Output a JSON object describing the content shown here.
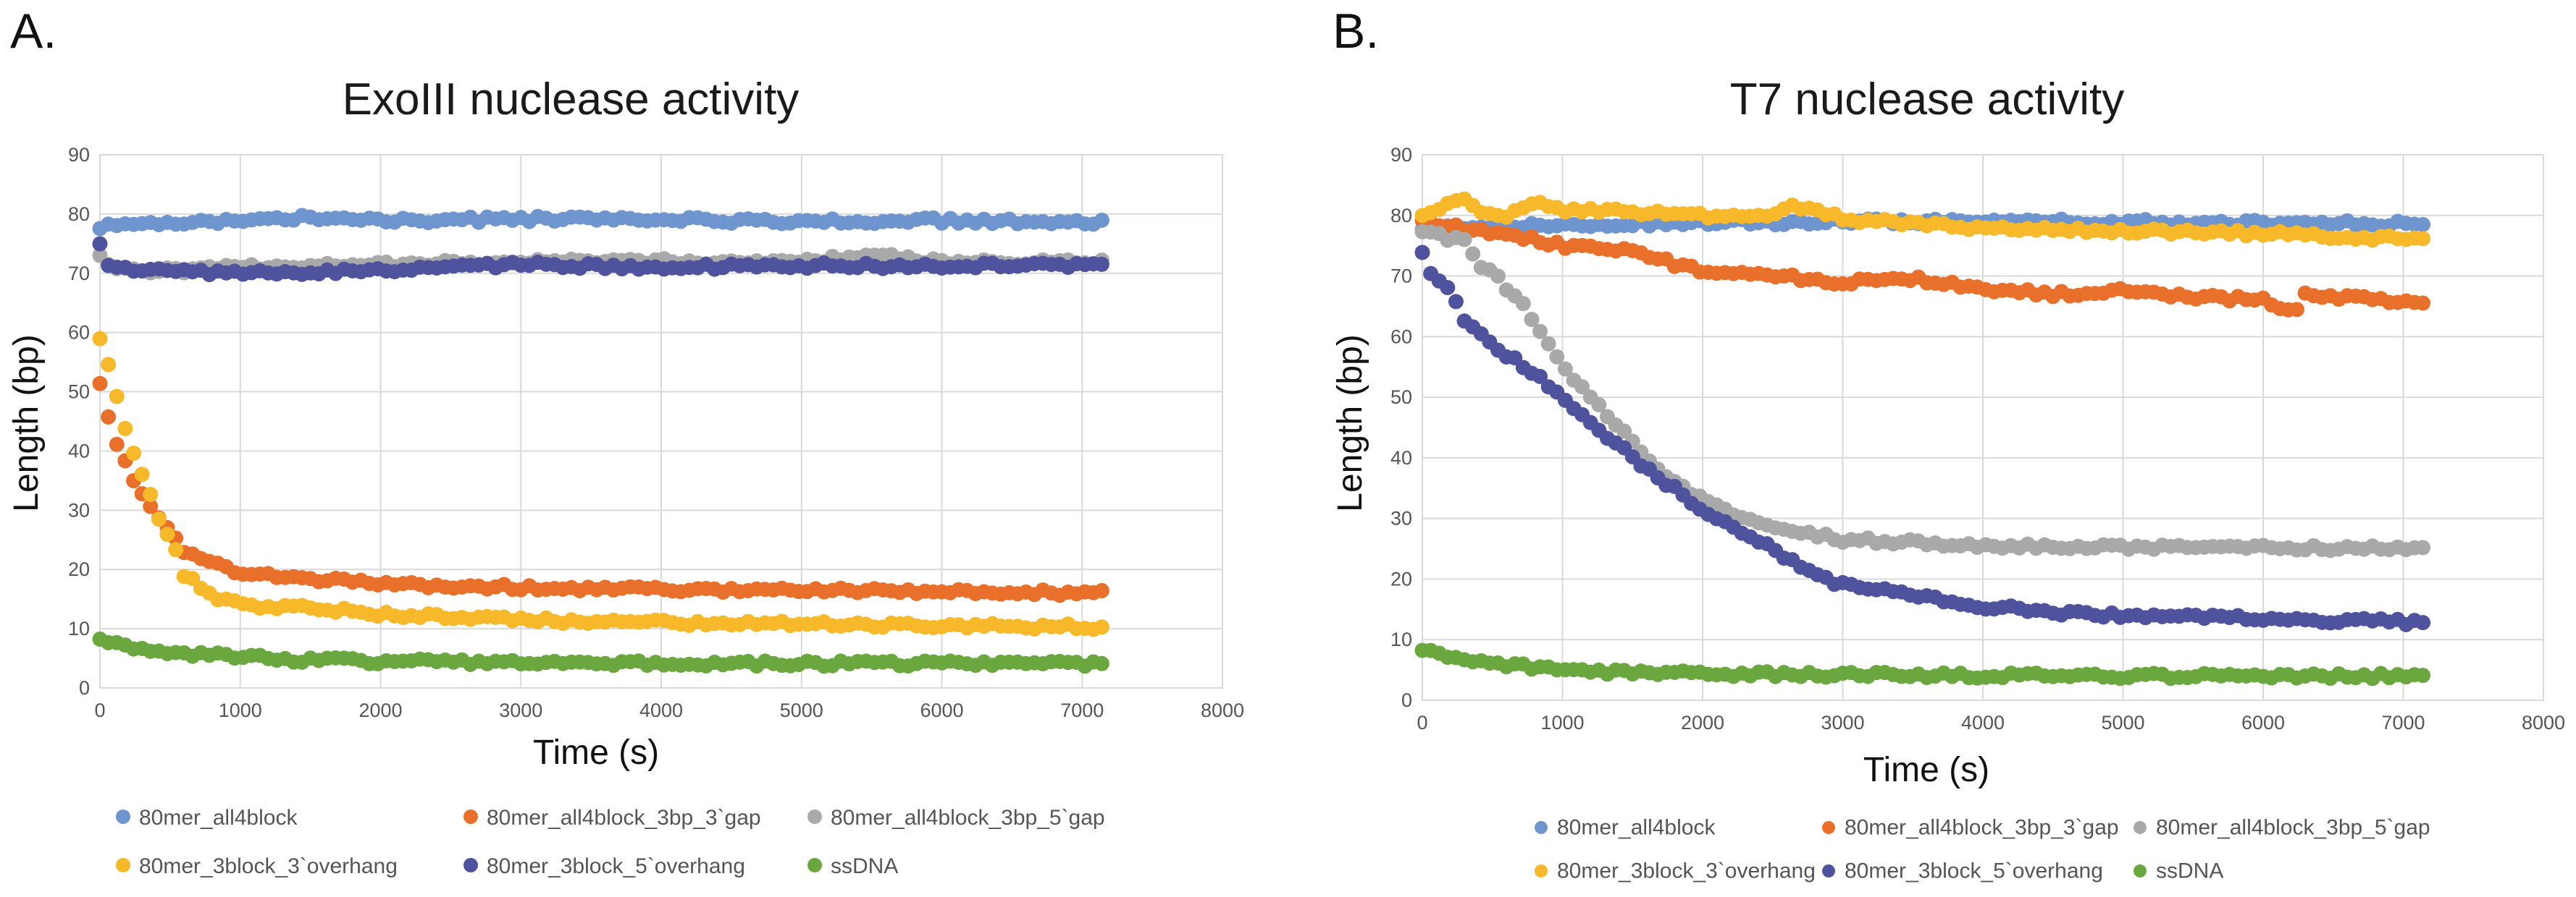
{
  "panel_letters": [
    "A.",
    "B."
  ],
  "colors": {
    "80mer_all4block": "#6f95cf",
    "80mer_all4block_3bp_3`gap": "#e8702a",
    "80mer_all4block_3bp_5`gap": "#a9a9a9",
    "80mer_3block_3`overhang": "#f7b82a",
    "80mer_3block_5`overhang": "#4f539d",
    "ssDNA": "#6aa83f"
  },
  "chart_data": [
    {
      "type": "scatter",
      "title": "ExoIII nuclease activity",
      "xlabel": "Time (s)",
      "ylabel": "Length (bp)",
      "xlim": [
        0,
        8000
      ],
      "ylim": [
        0,
        90
      ],
      "xticks": [
        0,
        1000,
        2000,
        3000,
        4000,
        5000,
        6000,
        7000,
        8000
      ],
      "yticks": [
        0,
        10,
        20,
        30,
        40,
        50,
        60,
        70,
        80,
        90
      ],
      "grid": true,
      "legend_position": "bottom",
      "series": [
        {
          "name": "80mer_all4block",
          "x": [
            0,
            600,
            1200,
            1500,
            1800,
            2500,
            3300,
            4000,
            5000,
            6000,
            7150
          ],
          "y": [
            78,
            78.5,
            79,
            79.4,
            79,
            79,
            79.2,
            79,
            78.8,
            78.9,
            78.7
          ]
        },
        {
          "name": "80mer_all4block_3bp_3`gap",
          "x": [
            0,
            100,
            200,
            300,
            400,
            500,
            600,
            800,
            1000,
            1500,
            2000,
            3000,
            4000,
            5000,
            6000,
            7150
          ],
          "y": [
            51,
            42.5,
            37,
            32.5,
            29,
            26.5,
            23,
            21,
            19.5,
            18.5,
            17.5,
            17,
            16.7,
            16.5,
            16.3,
            16
          ]
        },
        {
          "name": "80mer_all4block_3bp_5`gap",
          "x": [
            0,
            100,
            300,
            600,
            1000,
            2000,
            3000,
            4000,
            5000,
            5500,
            6000,
            7150
          ],
          "y": [
            73,
            71,
            70.5,
            70.5,
            71,
            71.5,
            72,
            72,
            72,
            73,
            72,
            71.8
          ]
        },
        {
          "name": "80mer_3block_3`overhang",
          "x": [
            0,
            100,
            150,
            250,
            350,
            450,
            550,
            600,
            700,
            800,
            1000,
            1500,
            2000,
            3000,
            4000,
            5000,
            6000,
            7150
          ],
          "y": [
            59,
            52,
            45,
            39.5,
            33,
            27,
            22.5,
            19,
            17.5,
            15.5,
            14,
            13.5,
            12.5,
            11.5,
            11,
            10.8,
            10.5,
            10.3
          ]
        },
        {
          "name": "80mer_3block_5`overhang",
          "x": [
            0,
            50,
            300,
            600,
            1000,
            1500,
            2000,
            3000,
            4000,
            5000,
            6000,
            7150
          ],
          "y": [
            75,
            71,
            70.5,
            70.2,
            70,
            70.3,
            70.5,
            71.5,
            71,
            71.3,
            71.2,
            71.5
          ]
        },
        {
          "name": "ssDNA",
          "x": [
            0,
            100,
            300,
            500,
            800,
            1000,
            1500,
            2000,
            3000,
            4000,
            5000,
            6000,
            7150
          ],
          "y": [
            8.5,
            7.5,
            6.7,
            6,
            5.5,
            5.2,
            4.7,
            4.5,
            4.3,
            4.2,
            4.1,
            4.1,
            4
          ]
        }
      ]
    },
    {
      "type": "scatter",
      "title": "T7 nuclease activity",
      "xlabel": "Time (s)",
      "ylabel": "Length (bp)",
      "xlim": [
        0,
        8000
      ],
      "ylim": [
        0,
        90
      ],
      "xticks": [
        0,
        1000,
        2000,
        3000,
        4000,
        5000,
        6000,
        7000,
        8000
      ],
      "yticks": [
        0,
        10,
        20,
        30,
        40,
        50,
        60,
        70,
        80,
        90
      ],
      "grid": true,
      "legend_position": "bottom",
      "series": [
        {
          "name": "80mer_all4block",
          "x": [
            0,
            500,
            1000,
            2000,
            3000,
            4000,
            5000,
            6000,
            7150
          ],
          "y": [
            78,
            78.3,
            78.5,
            78.8,
            79,
            79,
            78.9,
            78.8,
            78.6
          ]
        },
        {
          "name": "80mer_all4block_3bp_3`gap",
          "x": [
            0,
            100,
            250,
            400,
            600,
            800,
            1000,
            1500,
            1800,
            2000,
            2500,
            3000,
            3500,
            4000,
            4500,
            5000,
            5500,
            6000,
            6250,
            6300,
            7150
          ],
          "y": [
            79,
            78.5,
            78,
            77.5,
            77,
            76,
            75,
            74,
            72,
            71,
            70,
            69,
            69.5,
            68,
            67,
            67.5,
            66.5,
            66,
            64,
            67,
            65.5
          ]
        },
        {
          "name": "80mer_all4block_3bp_5`gap",
          "x": [
            0,
            100,
            200,
            300,
            400,
            500,
            600,
            700,
            800,
            900,
            1000,
            1200,
            1400,
            1600,
            1800,
            2000,
            2200,
            2500,
            3000,
            3500,
            4000,
            5000,
            6000,
            7150
          ],
          "y": [
            77.5,
            77,
            76,
            76,
            72,
            71,
            68,
            66,
            62,
            59,
            55,
            50,
            45,
            40,
            36,
            33,
            31,
            28.5,
            26.5,
            26,
            25.5,
            25.3,
            25.2,
            25
          ]
        },
        {
          "name": "80mer_3block_3`overhang",
          "x": [
            0,
            150,
            250,
            400,
            600,
            800,
            1000,
            1500,
            2000,
            2500,
            2600,
            3000,
            3500,
            4000,
            5000,
            6000,
            7150
          ],
          "y": [
            80,
            81.5,
            83,
            81,
            80,
            82,
            81,
            80.5,
            80,
            79.5,
            82,
            79.5,
            78.5,
            78,
            77.5,
            77,
            76
          ]
        },
        {
          "name": "80mer_3block_5`overhang",
          "x": [
            0,
            100,
            200,
            300,
            400,
            500,
            600,
            800,
            1000,
            1200,
            1400,
            1600,
            1800,
            2000,
            2200,
            2500,
            2800,
            3000,
            3500,
            4000,
            4500,
            5000,
            6000,
            7150
          ],
          "y": [
            73.5,
            69,
            68,
            63,
            61,
            59,
            57,
            54,
            50,
            46,
            42,
            38,
            35,
            31.5,
            29,
            25,
            20.5,
            19,
            17.5,
            15.5,
            14.5,
            14,
            13.5,
            12.8
          ]
        },
        {
          "name": "ssDNA",
          "x": [
            0,
            100,
            300,
            500,
            800,
            1000,
            1500,
            2000,
            3000,
            4000,
            5000,
            6000,
            7150
          ],
          "y": [
            8.5,
            7.5,
            6.5,
            6,
            5.5,
            5,
            4.6,
            4.4,
            4.2,
            4.1,
            4,
            4,
            4
          ]
        }
      ]
    }
  ]
}
